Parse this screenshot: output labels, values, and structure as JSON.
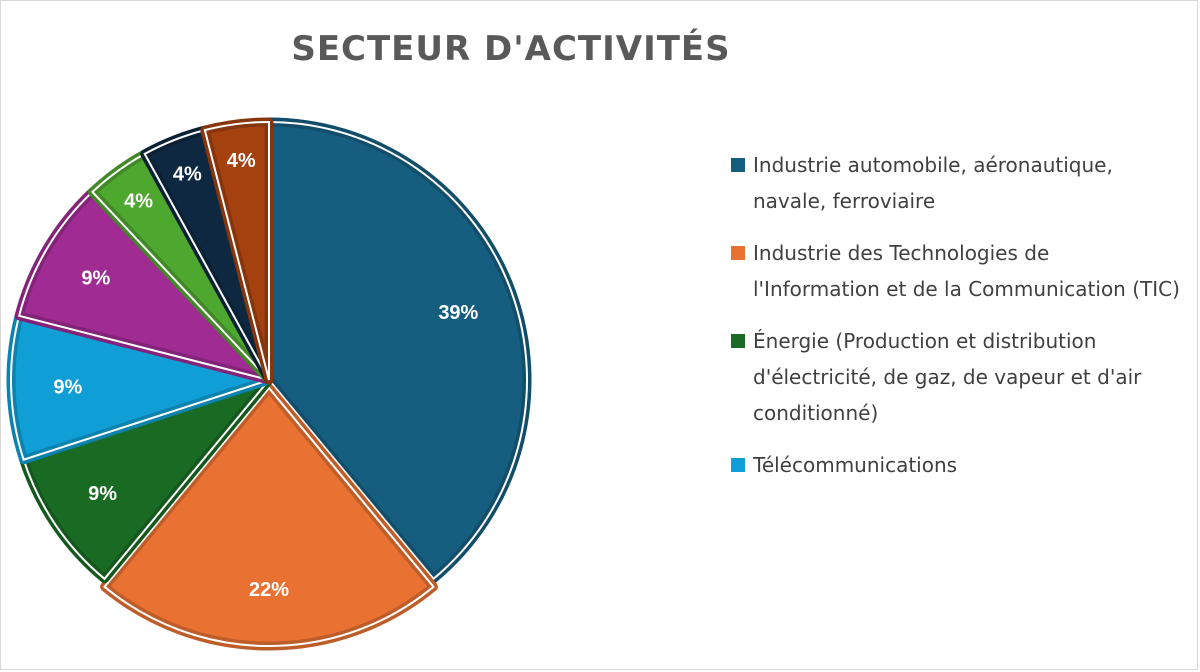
{
  "chart_data": {
    "type": "pie",
    "title": "SECTEUR D'ACTIVITÉS",
    "legend_position": "right",
    "slices": [
      {
        "name": "Industrie automobile, aéronautique, navale, ferroviaire",
        "value": 39,
        "label": "39%",
        "color": "#165E80"
      },
      {
        "name": "Industrie des Technologies de l'Information et de la Communication (TIC)",
        "value": 22,
        "label": "22%",
        "color": "#E97132"
      },
      {
        "name": "Énergie (Production et distribution d'électricité, de gaz, de vapeur et d'air conditionné)",
        "value": 9,
        "label": "9%",
        "color": "#196B24"
      },
      {
        "name": "Télécommunications",
        "value": 9,
        "label": "9%",
        "color": "#0F9ED5"
      },
      {
        "name": "",
        "value": 9,
        "label": "9%",
        "color": "#A02B93"
      },
      {
        "name": "",
        "value": 4,
        "label": "4%",
        "color": "#4EA72E"
      },
      {
        "name": "",
        "value": 4,
        "label": "4%",
        "color": "#0E2841"
      },
      {
        "name": "",
        "value": 4,
        "label": "4%",
        "color": "#A5410F"
      }
    ]
  }
}
